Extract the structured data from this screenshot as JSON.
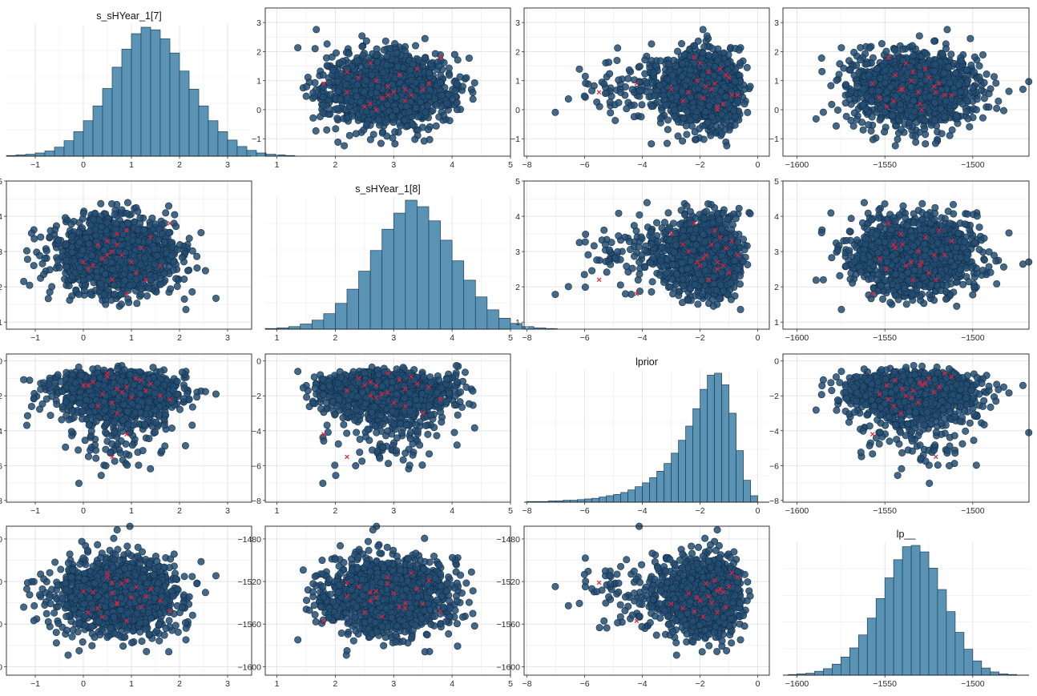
{
  "chart_data": {
    "type": "pairs",
    "variables": [
      "s_sHYear_1[7]",
      "s_sHYear_1[8]",
      "lprior",
      "lp__"
    ],
    "colors": {
      "histogram_fill": "#5b93b5",
      "point_fill": "#244d72",
      "divergent_marker": "#e0213b"
    },
    "grid": true,
    "axes": {
      "s_sHYear_1[7]": {
        "range": [
          -1.6,
          3.5
        ],
        "ticks": [
          -1,
          0,
          1,
          2,
          3
        ],
        "tick_labels": [
          "−1",
          "0",
          "1",
          "2",
          "3"
        ]
      },
      "s_sHYear_1[8]": {
        "range": [
          0.8,
          5.0
        ],
        "ticks": [
          1,
          2,
          3,
          4,
          5
        ],
        "tick_labels": [
          "1",
          "2",
          "3",
          "4",
          "5"
        ]
      },
      "lprior": {
        "range": [
          -8.1,
          0.4
        ],
        "ticks": [
          -8,
          -6,
          -4,
          -2,
          0
        ],
        "tick_labels": [
          "−8",
          "−6",
          "−4",
          "−2",
          "0"
        ]
      },
      "lp__": {
        "range": [
          -1608,
          -1468
        ],
        "ticks": [
          -1600,
          -1550,
          -1500
        ],
        "tick_labels": [
          "−1600",
          "−1550",
          "−1500"
        ],
        "y_ticks": [
          -1600,
          -1560,
          -1520,
          -1480
        ],
        "y_tick_labels": [
          "−1600",
          "−1560",
          "−1520",
          "−1480"
        ]
      }
    },
    "histograms": [
      {
        "variable": "s_sHYear_1[7]",
        "bin_start": -1.6,
        "bin_width": 0.2,
        "counts": [
          1,
          2,
          3,
          5,
          8,
          14,
          24,
          38,
          55,
          78,
          105,
          138,
          166,
          190,
          200,
          196,
          182,
          160,
          132,
          104,
          78,
          55,
          38,
          25,
          15,
          9,
          5,
          3,
          2,
          1
        ]
      },
      {
        "variable": "s_sHYear_1[8]",
        "bin_start": 0.8,
        "bin_width": 0.2,
        "counts": [
          1,
          2,
          4,
          8,
          14,
          24,
          40,
          62,
          90,
          122,
          155,
          180,
          200,
          190,
          168,
          138,
          106,
          76,
          50,
          30,
          17,
          9,
          4,
          2,
          1
        ]
      },
      {
        "variable": "lprior",
        "bin_start": -8.0,
        "bin_width": 0.25,
        "counts": [
          1,
          1,
          1,
          2,
          2,
          3,
          3,
          4,
          5,
          6,
          8,
          10,
          12,
          15,
          19,
          24,
          30,
          38,
          48,
          60,
          76,
          96,
          118,
          145,
          175,
          197,
          200,
          182,
          138,
          80,
          34,
          10
        ]
      },
      {
        "variable": "lp__",
        "bin_start": -1605,
        "bin_width": 5,
        "counts": [
          1,
          2,
          3,
          6,
          10,
          17,
          28,
          42,
          62,
          88,
          118,
          150,
          178,
          198,
          200,
          190,
          165,
          132,
          98,
          66,
          40,
          22,
          11,
          5,
          2,
          1
        ]
      }
    ],
    "scatter_summary": {
      "s_sHYear_1[7]": {
        "mean": 0.7,
        "sd": 0.6
      },
      "s_sHYear_1[8]": {
        "mean": 2.9,
        "sd": 0.5
      },
      "lprior": {
        "mean": -1.7,
        "sd": 1.1
      },
      "lp__": {
        "mean": -1533,
        "sd": 17
      },
      "n_draws": 1600
    },
    "divergent_draws": [
      {
        "s_sHYear_1[7]": 0.2,
        "s_sHYear_1[8]": 2.6,
        "lprior": -1.2,
        "lp__": -1530
      },
      {
        "s_sHYear_1[7]": 0.5,
        "s_sHYear_1[8]": 3.3,
        "lprior": -0.9,
        "lp__": -1512
      },
      {
        "s_sHYear_1[7]": 0.7,
        "s_sHYear_1[8]": 3.2,
        "lprior": -1.6,
        "lp__": -1540
      },
      {
        "s_sHYear_1[7]": 1.0,
        "s_sHYear_1[8]": 2.7,
        "lprior": -2.1,
        "lp__": -1535
      },
      {
        "s_sHYear_1[7]": 0.1,
        "s_sHYear_1[8]": 2.5,
        "lprior": -1.4,
        "lp__": -1549
      },
      {
        "s_sHYear_1[7]": 0.8,
        "s_sHYear_1[8]": 2.9,
        "lprior": -1.8,
        "lp__": -1522
      },
      {
        "s_sHYear_1[7]": 1.2,
        "s_sHYear_1[8]": 3.1,
        "lprior": -1.1,
        "lp__": -1544
      },
      {
        "s_sHYear_1[7]": 0.6,
        "s_sHYear_1[8]": 3.0,
        "lprior": -2.4,
        "lp__": -1531
      },
      {
        "s_sHYear_1[7]": 1.4,
        "s_sHYear_1[8]": 3.4,
        "lprior": -1.3,
        "lp__": -1527
      },
      {
        "s_sHYear_1[7]": 0.4,
        "s_sHYear_1[8]": 2.8,
        "lprior": -1.9,
        "lp__": -1553
      },
      {
        "s_sHYear_1[7]": 0.9,
        "s_sHYear_1[8]": 3.6,
        "lprior": -1.5,
        "lp__": -1519
      },
      {
        "s_sHYear_1[7]": 1.6,
        "s_sHYear_1[8]": 2.6,
        "lprior": -2.0,
        "lp__": -1538
      },
      {
        "s_sHYear_1[7]": 0.3,
        "s_sHYear_1[8]": 3.2,
        "lprior": -2.6,
        "lp__": -1545
      },
      {
        "s_sHYear_1[7]": 1.1,
        "s_sHYear_1[8]": 2.4,
        "lprior": -1.0,
        "lp__": -1525
      },
      {
        "s_sHYear_1[7]": 0.7,
        "s_sHYear_1[8]": 3.5,
        "lprior": -3.0,
        "lp__": -1541
      },
      {
        "s_sHYear_1[7]": 1.3,
        "s_sHYear_1[8]": 2.2,
        "lprior": -1.7,
        "lp__": -1534
      },
      {
        "s_sHYear_1[7]": 0.5,
        "s_sHYear_1[8]": 2.9,
        "lprior": -0.7,
        "lp__": -1516
      },
      {
        "s_sHYear_1[7]": 1.8,
        "s_sHYear_1[8]": 3.8,
        "lprior": -2.2,
        "lp__": -1548
      },
      {
        "s_sHYear_1[7]": 0.0,
        "s_sHYear_1[8]": 2.7,
        "lprior": -1.4,
        "lp__": -1529
      },
      {
        "s_sHYear_1[7]": 0.9,
        "s_sHYear_1[8]": 1.8,
        "lprior": -4.2,
        "lp__": -1557
      },
      {
        "s_sHYear_1[7]": 0.6,
        "s_sHYear_1[8]": 2.2,
        "lprior": -5.5,
        "lp__": -1521
      }
    ]
  }
}
